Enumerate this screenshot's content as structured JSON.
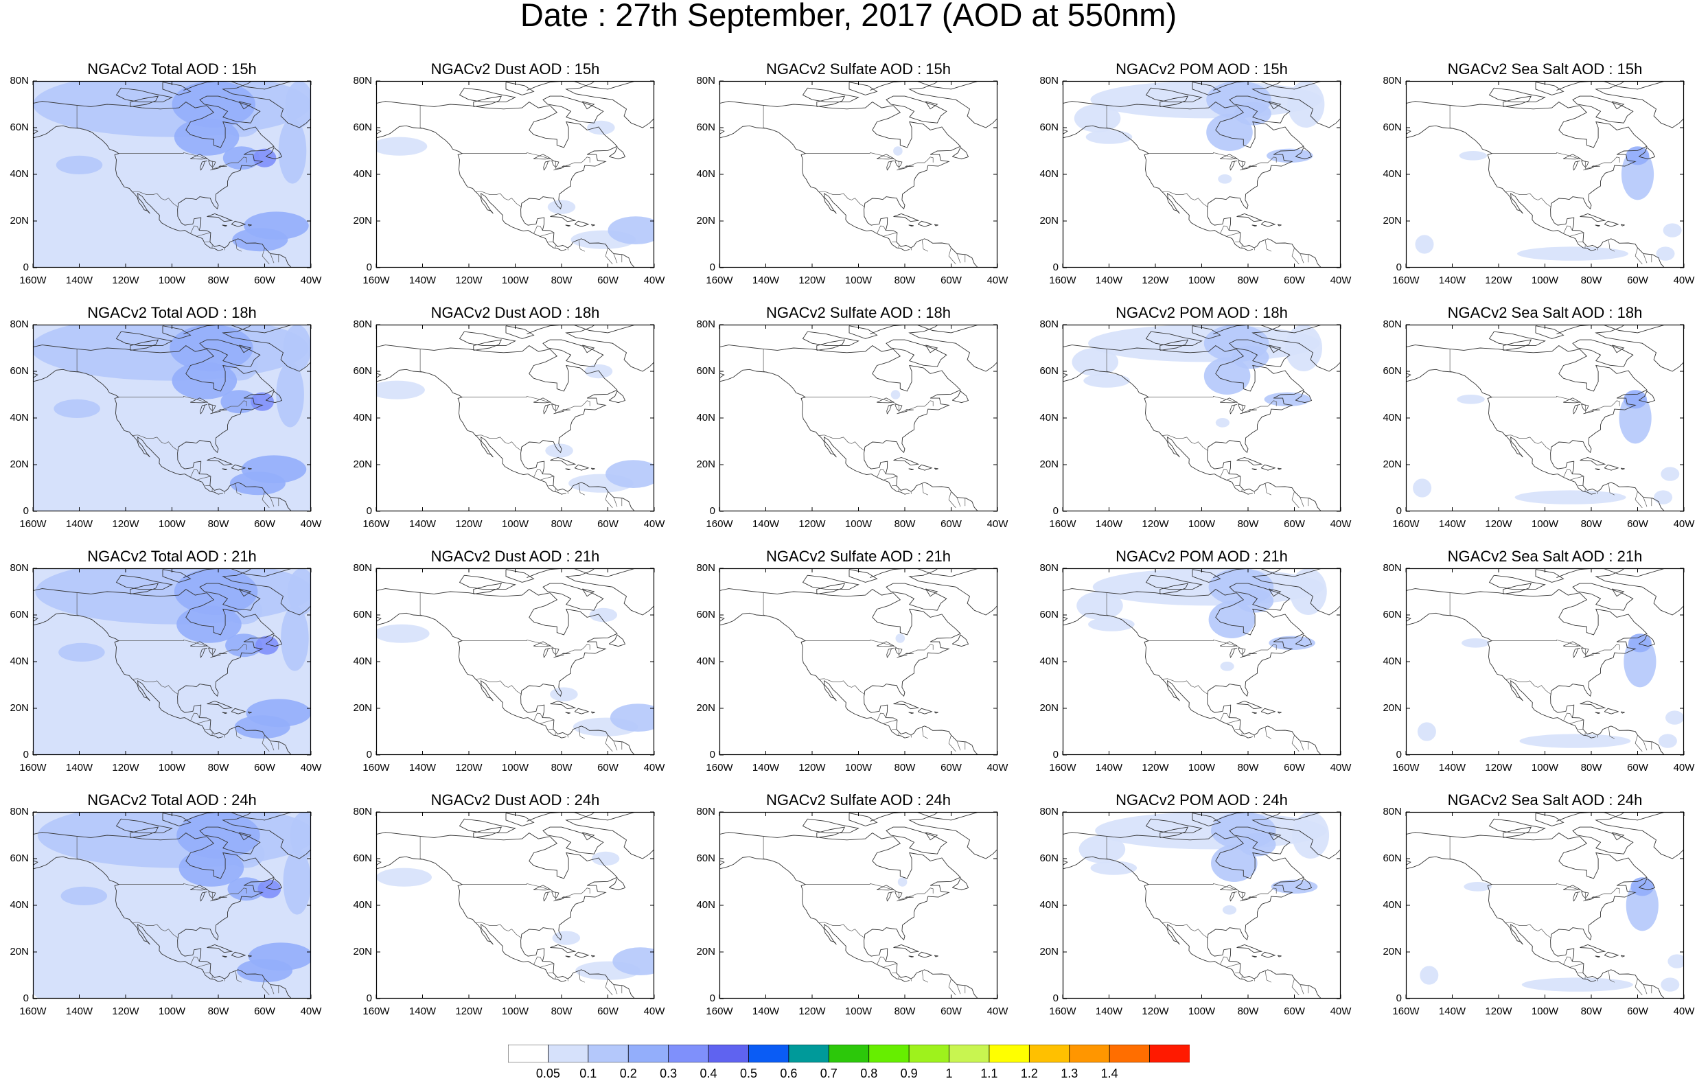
{
  "title": "Date : 27th September, 2017 (AOD at 550nm)",
  "lat_ticks": [
    "80N",
    "60N",
    "40N",
    "20N",
    "0"
  ],
  "lon_ticks": [
    "160W",
    "140W",
    "120W",
    "100W",
    "80W",
    "60W",
    "40W"
  ],
  "colorbar": {
    "labels": [
      "0.05",
      "0.1",
      "0.2",
      "0.3",
      "0.4",
      "0.5",
      "0.6",
      "0.7",
      "0.8",
      "0.9",
      "1",
      "1.1",
      "1.2",
      "1.3",
      "1.4"
    ],
    "colors": [
      "#ffffff",
      "#d6e1fb",
      "#b4c8fb",
      "#93aefb",
      "#7f90fb",
      "#5f63f0",
      "#0a5cf5",
      "#009a9a",
      "#2cc80a",
      "#66ee00",
      "#9ef21c",
      "#c8f550",
      "#ffff00",
      "#ffc000",
      "#ff9600",
      "#ff6e00",
      "#ff1a00"
    ]
  },
  "panels": [
    {
      "title": "NGACv2 Total AOD : 15h",
      "species": "total"
    },
    {
      "title": "NGACv2 Dust AOD : 15h",
      "species": "dust"
    },
    {
      "title": "NGACv2 Sulfate AOD : 15h",
      "species": "sulfate"
    },
    {
      "title": "NGACv2 POM AOD : 15h",
      "species": "pom"
    },
    {
      "title": "NGACv2 Sea Salt AOD : 15h",
      "species": "seasalt"
    },
    {
      "title": "NGACv2 Total AOD : 18h",
      "species": "total"
    },
    {
      "title": "NGACv2 Dust AOD : 18h",
      "species": "dust"
    },
    {
      "title": "NGACv2 Sulfate AOD : 18h",
      "species": "sulfate"
    },
    {
      "title": "NGACv2 POM AOD : 18h",
      "species": "pom"
    },
    {
      "title": "NGACv2 Sea Salt AOD : 18h",
      "species": "seasalt"
    },
    {
      "title": "NGACv2 Total AOD : 21h",
      "species": "total"
    },
    {
      "title": "NGACv2 Dust AOD : 21h",
      "species": "dust"
    },
    {
      "title": "NGACv2 Sulfate AOD : 21h",
      "species": "sulfate"
    },
    {
      "title": "NGACv2 POM AOD : 21h",
      "species": "pom"
    },
    {
      "title": "NGACv2 Sea Salt AOD : 21h",
      "species": "seasalt"
    },
    {
      "title": "NGACv2 Total AOD : 24h",
      "species": "total"
    },
    {
      "title": "NGACv2 Dust AOD : 24h",
      "species": "dust"
    },
    {
      "title": "NGACv2 Sulfate AOD : 24h",
      "species": "sulfate"
    },
    {
      "title": "NGACv2 POM AOD : 24h",
      "species": "pom"
    },
    {
      "title": "NGACv2 Sea Salt  AOD : 24h",
      "species": "seasalt"
    }
  ]
}
